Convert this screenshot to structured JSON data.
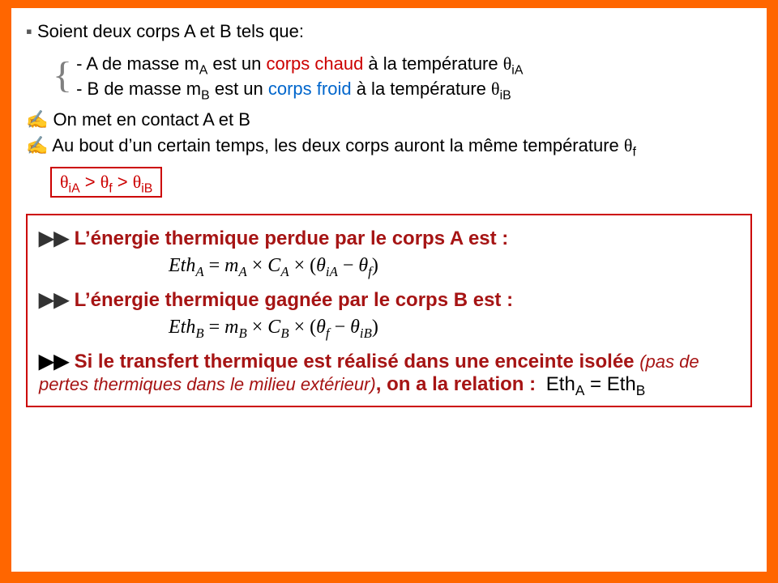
{
  "intro": {
    "bullet": "▪",
    "text": "Soient deux corps A et B tels que:"
  },
  "given": {
    "a_prefix": "- A de masse m",
    "a_sub": "A",
    "a_mid": " est un ",
    "a_hot": "corps chaud",
    "a_mid2": " à la température ",
    "a_theta": "θ",
    "a_theta_sub": "iA",
    "b_prefix": "- B de masse m",
    "b_sub": "B",
    "b_mid": " est un ",
    "b_cold": "corps froid",
    "b_mid2": " à la température ",
    "b_theta": "θ",
    "b_theta_sub": "iB"
  },
  "contact": {
    "hand": "✍",
    "l1": " On met en contact A et B",
    "l2_a": " Au bout d’un certain temps, les deux corps auront la même température ",
    "l2_theta": "θ",
    "l2_sub": "f"
  },
  "inequality": {
    "t1": "θ",
    "s1": "iA",
    "gt1": " > ",
    "t2": "θ",
    "s2": "f",
    "gt2": " > ",
    "t3": "θ",
    "s3": "iB"
  },
  "box": {
    "arrow": "▶▶",
    "lead_a": " L’énergie thermique perdue par le corps A est :",
    "lead_b": " L’énergie thermique gagnée par le corps B est :",
    "formula_a": {
      "lhs_e": "Eth",
      "lhs_sub": "A",
      "eq": " = ",
      "m": "m",
      "m_sub": "A",
      "times1": " × ",
      "c": "C",
      "c_sub": "A",
      "times2": " × (",
      "t1": "θ",
      "t1s": "iA",
      "minus": " − ",
      "t2": "θ",
      "t2s": "f",
      "close": ")"
    },
    "formula_b": {
      "lhs_e": "Eth",
      "lhs_sub": "B",
      "eq": " = ",
      "m": "m",
      "m_sub": "B",
      "times1": " × ",
      "c": "C",
      "c_sub": "B",
      "times2": " × (",
      "t1": "θ",
      "t1s": "f",
      "minus": " − ",
      "t2": "θ",
      "t2s": "iB",
      "close": ")"
    },
    "lead_c1": " Si le transfert thermique est réalisé dans une enceinte isolée ",
    "lead_c_paren": "(pas de pertes thermiques dans le milieu extérieur)",
    "lead_c2": ", on a la relation : ",
    "relation": {
      "l": "Eth",
      "ls": "A",
      "eq": " = ",
      "r": "Eth",
      "rs": "B"
    }
  },
  "colors": {
    "frame": "#ff6600",
    "red": "#cc0000",
    "darkred": "#a61414",
    "blue": "#0066cc"
  }
}
